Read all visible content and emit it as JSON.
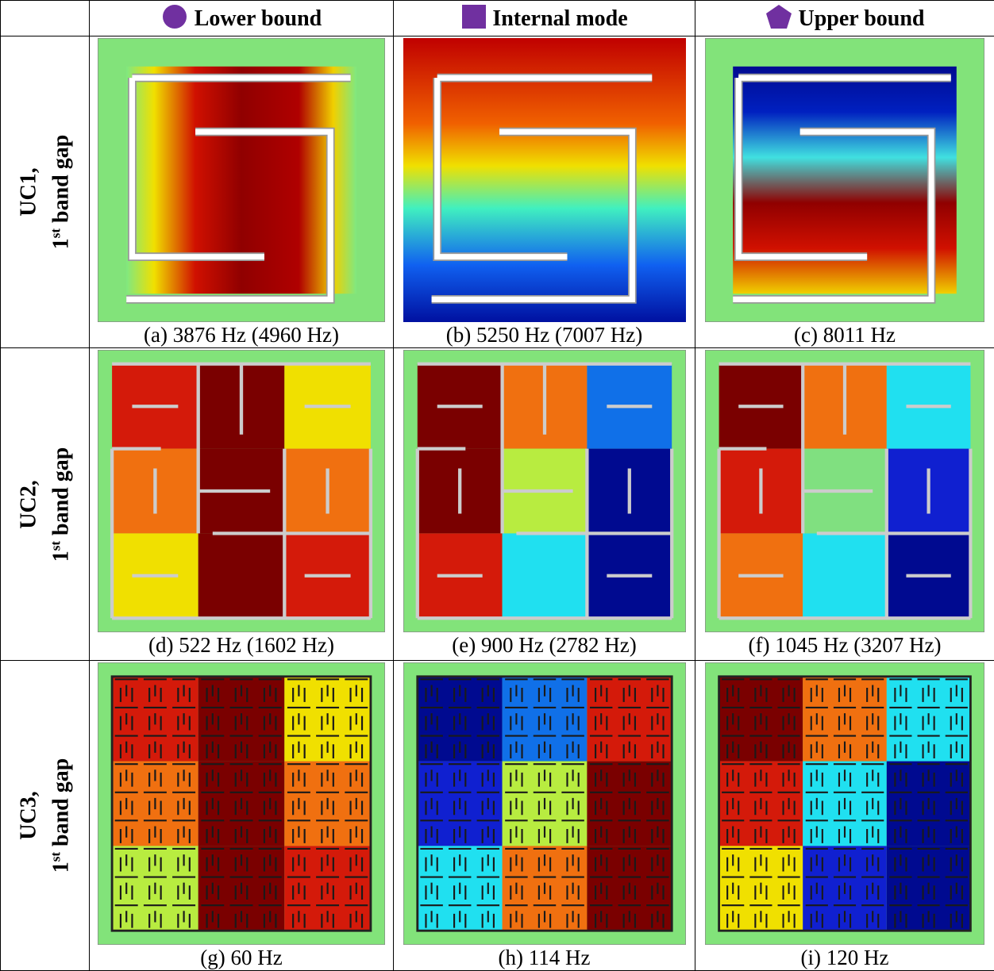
{
  "header": {
    "columns": [
      "Lower bound",
      "Internal mode",
      "Upper bound"
    ]
  },
  "rows": [
    {
      "label": {
        "name": "UC1,",
        "ordinal": "1",
        "suffix": "st",
        "rest": "band gap"
      },
      "captions": [
        "(a) 3876 Hz (4960 Hz)",
        "(b) 5250 Hz (7007 Hz)",
        "(c) 8011 Hz"
      ]
    },
    {
      "label": {
        "name": "UC2,",
        "ordinal": "1",
        "suffix": "st",
        "rest": "band gap"
      },
      "captions": [
        "(d) 522 Hz (1602 Hz)",
        "(e) 900 Hz (2782 Hz)",
        "(f) 1045 Hz (3207 Hz)"
      ]
    },
    {
      "label": {
        "name": "UC3,",
        "ordinal": "1",
        "suffix": "st",
        "rest": "band gap"
      },
      "captions": [
        "(g) 60 Hz",
        "(h) 114 Hz",
        "(i) 120 Hz"
      ]
    }
  ]
}
